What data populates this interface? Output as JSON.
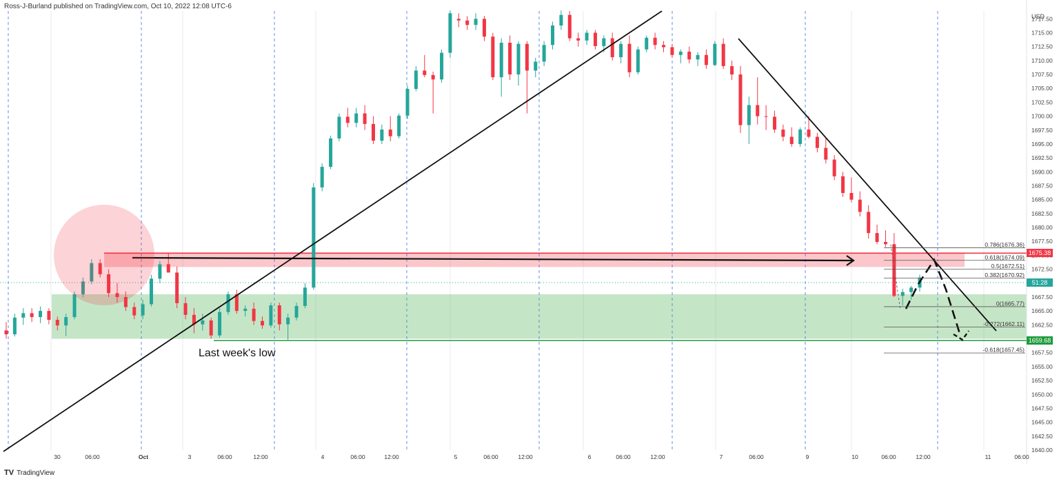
{
  "header": {
    "publisher": "Ross-J-Burland published on TradingView.com, Oct 10, 2022 12:08 UTC-6"
  },
  "footer": {
    "brand": "TradingView",
    "logo": "TV"
  },
  "currency": "USD",
  "annotation": "Last week's low",
  "price_labels": [
    {
      "id": "res",
      "text": "1675.38",
      "color": "#f23645"
    },
    {
      "id": "cur",
      "text": "51:28",
      "color": "#26a69a"
    },
    {
      "id": "low",
      "text": "1659.68",
      "color": "#1e9b3c"
    }
  ],
  "chart_data": {
    "type": "candlestick",
    "y_axis": {
      "ticks": [
        1640.0,
        1642.5,
        1645.0,
        1647.5,
        1650.0,
        1652.5,
        1655.0,
        1657.5,
        1660.0,
        1662.5,
        1665.0,
        1667.5,
        1670.0,
        1672.5,
        1675.0,
        1677.5,
        1680.0,
        1682.5,
        1685.0,
        1687.5,
        1690.0,
        1692.5,
        1695.0,
        1697.5,
        1700.0,
        1702.5,
        1705.0,
        1707.5,
        1710.0,
        1712.5,
        1715.0,
        1717.5
      ],
      "ylim": [
        1640,
        1718.9
      ],
      "position": "right"
    },
    "x_axis": {
      "tick_labels": [
        "30",
        "06:00",
        "Oct",
        "3",
        "06:00",
        "12:00",
        "4",
        "06:00",
        "12:00",
        "5",
        "06:00",
        "12:00",
        "6",
        "06:00",
        "12:00",
        "7",
        "06:00",
        "9",
        "10",
        "06:00",
        "12:00",
        "11",
        "06:00"
      ]
    },
    "fibonacci": [
      {
        "label": "0.786(1676.36)",
        "value": 1676.36
      },
      {
        "label": "0.618(1674.09)",
        "value": 1674.09
      },
      {
        "label": "0.5(1672.51)",
        "value": 1672.51
      },
      {
        "label": "0.382(1670.92)",
        "value": 1670.92
      },
      {
        "label": "0(1665.77)",
        "value": 1665.77
      },
      {
        "label": "-0.272(1662.11)",
        "value": 1662.11
      },
      {
        "label": "-0.618(1657.45)",
        "value": 1657.45
      }
    ],
    "zones": [
      {
        "name": "resistance",
        "top": 1675.5,
        "bottom": 1672.9,
        "color": "#f23645"
      },
      {
        "name": "support",
        "top": 1668.0,
        "bottom": 1660.0,
        "color": "#4caf50"
      }
    ],
    "levels": [
      {
        "value": 1675.38
      },
      {
        "value": 1659.68
      }
    ],
    "colors": {
      "up": "#26a69a",
      "down": "#f23645"
    },
    "grid": true,
    "candles": [
      [
        1661.5,
        1663.0,
        1660.0,
        1660.8
      ],
      [
        1660.8,
        1664.5,
        1660.4,
        1663.8
      ],
      [
        1663.8,
        1665.5,
        1662.5,
        1664.6
      ],
      [
        1664.6,
        1665.5,
        1663.0,
        1663.9
      ],
      [
        1663.9,
        1665.8,
        1662.8,
        1665.0
      ],
      [
        1665.0,
        1665.5,
        1662.6,
        1663.4
      ],
      [
        1663.4,
        1664.0,
        1661.5,
        1662.4
      ],
      [
        1662.4,
        1664.5,
        1660.5,
        1663.9
      ],
      [
        1663.9,
        1668.5,
        1663.5,
        1668.0
      ],
      [
        1668.0,
        1671.0,
        1667.5,
        1670.3
      ],
      [
        1670.3,
        1674.3,
        1669.8,
        1673.6
      ],
      [
        1673.6,
        1674.3,
        1671.0,
        1671.6
      ],
      [
        1671.6,
        1672.5,
        1667.5,
        1668.2
      ],
      [
        1668.2,
        1670.0,
        1666.5,
        1667.5
      ],
      [
        1667.5,
        1668.5,
        1665.0,
        1665.7
      ],
      [
        1665.7,
        1666.5,
        1663.5,
        1664.2
      ],
      [
        1664.2,
        1667.0,
        1663.5,
        1666.2
      ],
      [
        1666.2,
        1671.5,
        1665.8,
        1670.8
      ],
      [
        1670.8,
        1674.0,
        1670.0,
        1673.4
      ],
      [
        1673.4,
        1675.4,
        1672.0,
        1671.9
      ],
      [
        1671.9,
        1673.0,
        1665.5,
        1666.4
      ],
      [
        1666.4,
        1667.5,
        1663.5,
        1664.3
      ],
      [
        1664.3,
        1665.5,
        1661.0,
        1662.6
      ],
      [
        1662.6,
        1664.5,
        1661.5,
        1663.3
      ],
      [
        1663.3,
        1663.8,
        1660.0,
        1660.6
      ],
      [
        1660.6,
        1665.5,
        1660.2,
        1664.8
      ],
      [
        1664.8,
        1668.5,
        1664.3,
        1668.0
      ],
      [
        1668.0,
        1668.8,
        1664.5,
        1665.0
      ],
      [
        1665.0,
        1666.0,
        1664.0,
        1665.4
      ],
      [
        1665.4,
        1666.5,
        1662.5,
        1663.2
      ],
      [
        1663.2,
        1664.0,
        1661.8,
        1662.4
      ],
      [
        1662.4,
        1666.5,
        1662.0,
        1666.0
      ],
      [
        1666.0,
        1666.5,
        1661.5,
        1662.6
      ],
      [
        1662.6,
        1664.5,
        1659.8,
        1663.8
      ],
      [
        1663.8,
        1666.5,
        1663.3,
        1665.9
      ],
      [
        1665.9,
        1670.0,
        1665.5,
        1669.2
      ],
      [
        1669.2,
        1688.0,
        1668.8,
        1687.2
      ],
      [
        1687.2,
        1691.5,
        1686.5,
        1690.9
      ],
      [
        1690.9,
        1696.5,
        1690.5,
        1696.0
      ],
      [
        1696.0,
        1700.5,
        1695.5,
        1699.9
      ],
      [
        1699.9,
        1701.5,
        1698.0,
        1698.8
      ],
      [
        1698.8,
        1701.5,
        1698.0,
        1700.5
      ],
      [
        1700.5,
        1702.0,
        1697.5,
        1698.6
      ],
      [
        1698.6,
        1700.0,
        1695.0,
        1695.6
      ],
      [
        1695.6,
        1698.5,
        1695.0,
        1697.6
      ],
      [
        1697.6,
        1700.0,
        1695.5,
        1696.4
      ],
      [
        1696.4,
        1700.5,
        1696.0,
        1700.1
      ],
      [
        1700.1,
        1705.5,
        1699.5,
        1704.9
      ],
      [
        1704.9,
        1709.0,
        1704.5,
        1708.2
      ],
      [
        1708.2,
        1711.0,
        1707.0,
        1707.4
      ],
      [
        1707.4,
        1708.0,
        1700.5,
        1706.6
      ],
      [
        1706.6,
        1712.0,
        1706.0,
        1711.4
      ],
      [
        1711.4,
        1719.0,
        1710.5,
        1718.5
      ],
      [
        1717.5,
        1718.5,
        1716.0,
        1717.2
      ],
      [
        1717.2,
        1718.0,
        1715.5,
        1716.4
      ],
      [
        1716.4,
        1718.5,
        1715.5,
        1717.5
      ],
      [
        1717.5,
        1718.0,
        1713.5,
        1714.3
      ],
      [
        1714.3,
        1715.0,
        1706.5,
        1707.0
      ],
      [
        1707.0,
        1714.0,
        1703.5,
        1713.2
      ],
      [
        1713.2,
        1714.5,
        1706.5,
        1707.5
      ],
      [
        1707.5,
        1713.5,
        1705.5,
        1713.0
      ],
      [
        1713.0,
        1713.5,
        1700.5,
        1708.2
      ],
      [
        1708.2,
        1710.5,
        1707.0,
        1709.8
      ],
      [
        1709.8,
        1713.5,
        1709.0,
        1712.8
      ],
      [
        1712.8,
        1717.0,
        1712.0,
        1716.3
      ],
      [
        1716.3,
        1719.0,
        1715.5,
        1718.2
      ],
      [
        1718.2,
        1718.9,
        1713.5,
        1714.0
      ],
      [
        1714.0,
        1715.0,
        1712.5,
        1713.6
      ],
      [
        1713.6,
        1715.5,
        1712.8,
        1715.0
      ],
      [
        1715.0,
        1715.5,
        1712.0,
        1712.6
      ],
      [
        1712.6,
        1714.5,
        1711.5,
        1714.0
      ],
      [
        1714.0,
        1715.0,
        1710.0,
        1710.6
      ],
      [
        1710.6,
        1713.5,
        1709.5,
        1713.0
      ],
      [
        1713.0,
        1714.5,
        1707.0,
        1707.9
      ],
      [
        1707.9,
        1712.5,
        1707.5,
        1712.0
      ],
      [
        1712.0,
        1714.5,
        1711.5,
        1714.1
      ],
      [
        1714.1,
        1715.0,
        1712.0,
        1712.8
      ],
      [
        1712.8,
        1713.5,
        1711.5,
        1712.4
      ],
      [
        1712.4,
        1713.0,
        1710.5,
        1711.0
      ],
      [
        1711.0,
        1712.0,
        1709.5,
        1711.6
      ],
      [
        1711.6,
        1712.5,
        1709.5,
        1710.2
      ],
      [
        1710.2,
        1711.5,
        1709.0,
        1711.0
      ],
      [
        1711.0,
        1712.0,
        1708.5,
        1709.2
      ],
      [
        1709.2,
        1713.5,
        1709.0,
        1713.0
      ],
      [
        1713.0,
        1714.0,
        1708.5,
        1709.0
      ],
      [
        1709.0,
        1710.0,
        1706.5,
        1707.5
      ],
      [
        1707.5,
        1709.0,
        1697.0,
        1698.4
      ],
      [
        1698.4,
        1703.5,
        1695.0,
        1702.0
      ],
      [
        1702.0,
        1707.0,
        1698.5,
        1700.0
      ],
      [
        1700.0,
        1702.0,
        1697.5,
        1699.9
      ],
      [
        1699.9,
        1701.0,
        1697.0,
        1697.6
      ],
      [
        1697.6,
        1698.5,
        1695.5,
        1696.3
      ],
      [
        1696.3,
        1698.0,
        1694.5,
        1695.0
      ],
      [
        1695.0,
        1698.0,
        1694.5,
        1697.6
      ],
      [
        1697.6,
        1700.0,
        1696.0,
        1696.3
      ],
      [
        1696.3,
        1697.0,
        1693.5,
        1694.3
      ],
      [
        1694.3,
        1696.0,
        1691.5,
        1692.2
      ],
      [
        1692.2,
        1693.0,
        1688.5,
        1689.2
      ],
      [
        1689.2,
        1690.0,
        1685.5,
        1686.2
      ],
      [
        1686.2,
        1689.0,
        1684.5,
        1685.0
      ],
      [
        1685.0,
        1686.5,
        1682.0,
        1682.8
      ],
      [
        1682.8,
        1684.0,
        1678.0,
        1679.0
      ],
      [
        1679.0,
        1680.5,
        1677.0,
        1677.4
      ],
      [
        1677.4,
        1679.5,
        1676.5,
        1677.0
      ],
      [
        1677.0,
        1679.0,
        1667.5,
        1667.7
      ],
      [
        1667.7,
        1669.0,
        1666.0,
        1668.4
      ],
      [
        1668.4,
        1669.5,
        1667.0,
        1669.2
      ],
      [
        1669.2,
        1671.5,
        1668.5,
        1671.0
      ]
    ]
  }
}
